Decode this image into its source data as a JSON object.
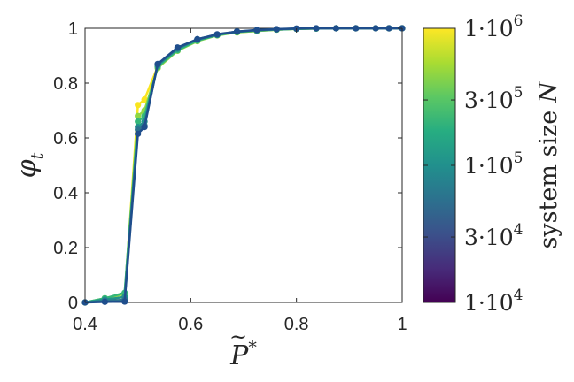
{
  "chart_data": {
    "type": "line",
    "xlabel_base": "P",
    "xlabel_sup": "*",
    "ylabel_base": "φ",
    "ylabel_sub": "t",
    "xlim": [
      0.4,
      1.0
    ],
    "ylim": [
      0,
      1
    ],
    "xticks": [
      0.4,
      0.6,
      0.8,
      1.0
    ],
    "xtick_labels": [
      "0.4",
      "0.6",
      "0.8",
      "1"
    ],
    "yticks": [
      0,
      0.2,
      0.4,
      0.6,
      0.8,
      1.0
    ],
    "ytick_labels": [
      "0",
      "0.2",
      "0.4",
      "0.6",
      "0.8",
      "1"
    ],
    "grid": false,
    "x": [
      0.4,
      0.4375,
      0.475,
      0.5,
      0.5125,
      0.5375,
      0.575,
      0.6125,
      0.65,
      0.6875,
      0.725,
      0.7625,
      0.8,
      0.8375,
      0.875,
      0.9125,
      0.95,
      0.975,
      1.0
    ],
    "series": [
      {
        "color": "#f9e51e",
        "values": [
          0.0,
          0.01,
          0.02,
          0.72,
          0.74,
          0.86,
          0.92,
          0.955,
          0.975,
          0.985,
          0.99,
          0.995,
          0.998,
          0.999,
          1.0,
          1.0,
          1.0,
          1.0,
          1.0
        ]
      },
      {
        "color": "#8fd744",
        "values": [
          0.0,
          0.015,
          0.03,
          0.68,
          0.7,
          0.855,
          0.918,
          0.953,
          0.974,
          0.985,
          0.99,
          0.995,
          0.998,
          0.999,
          1.0,
          1.0,
          1.0,
          1.0,
          1.0
        ]
      },
      {
        "color": "#35b779",
        "values": [
          0.0,
          0.015,
          0.035,
          0.66,
          0.68,
          0.86,
          0.92,
          0.955,
          0.975,
          0.986,
          0.991,
          0.995,
          0.998,
          0.999,
          1.0,
          1.0,
          1.0,
          1.0,
          1.0
        ]
      },
      {
        "color": "#21918c",
        "values": [
          0.0,
          0.01,
          0.02,
          0.64,
          0.66,
          0.865,
          0.925,
          0.958,
          0.976,
          0.987,
          0.992,
          0.996,
          0.998,
          0.999,
          1.0,
          1.0,
          1.0,
          1.0,
          1.0
        ]
      },
      {
        "color": "#2c728e",
        "values": [
          0.0,
          0.005,
          0.01,
          0.63,
          0.645,
          0.868,
          0.928,
          0.96,
          0.977,
          0.988,
          0.993,
          0.996,
          0.999,
          1.0,
          1.0,
          1.0,
          1.0,
          1.0,
          1.0
        ]
      },
      {
        "color": "#1f4e8c",
        "values": [
          0.0,
          0.002,
          0.003,
          0.615,
          0.64,
          0.87,
          0.93,
          0.96,
          0.978,
          0.988,
          0.994,
          0.997,
          0.999,
          1.0,
          1.0,
          1.0,
          1.0,
          1.0,
          1.0
        ]
      }
    ],
    "colorbar": {
      "label_text": "system size ",
      "label_var": "N",
      "scale": "log",
      "range": [
        10000,
        1000000
      ],
      "colors": [
        "#440154",
        "#472c7a",
        "#3b518b",
        "#2c718e",
        "#21908d",
        "#27ad81",
        "#5cc863",
        "#aadc32",
        "#fde725"
      ],
      "ticks": [
        10000,
        30000,
        100000,
        300000,
        1000000
      ],
      "tick_mantissas": [
        "1",
        "3",
        "1",
        "3",
        "1"
      ],
      "tick_bases": [
        "10",
        "10",
        "10",
        "10",
        "10"
      ],
      "tick_exponents": [
        "4",
        "4",
        "5",
        "5",
        "6"
      ],
      "tick_sep": "·",
      "placement": "right"
    }
  }
}
